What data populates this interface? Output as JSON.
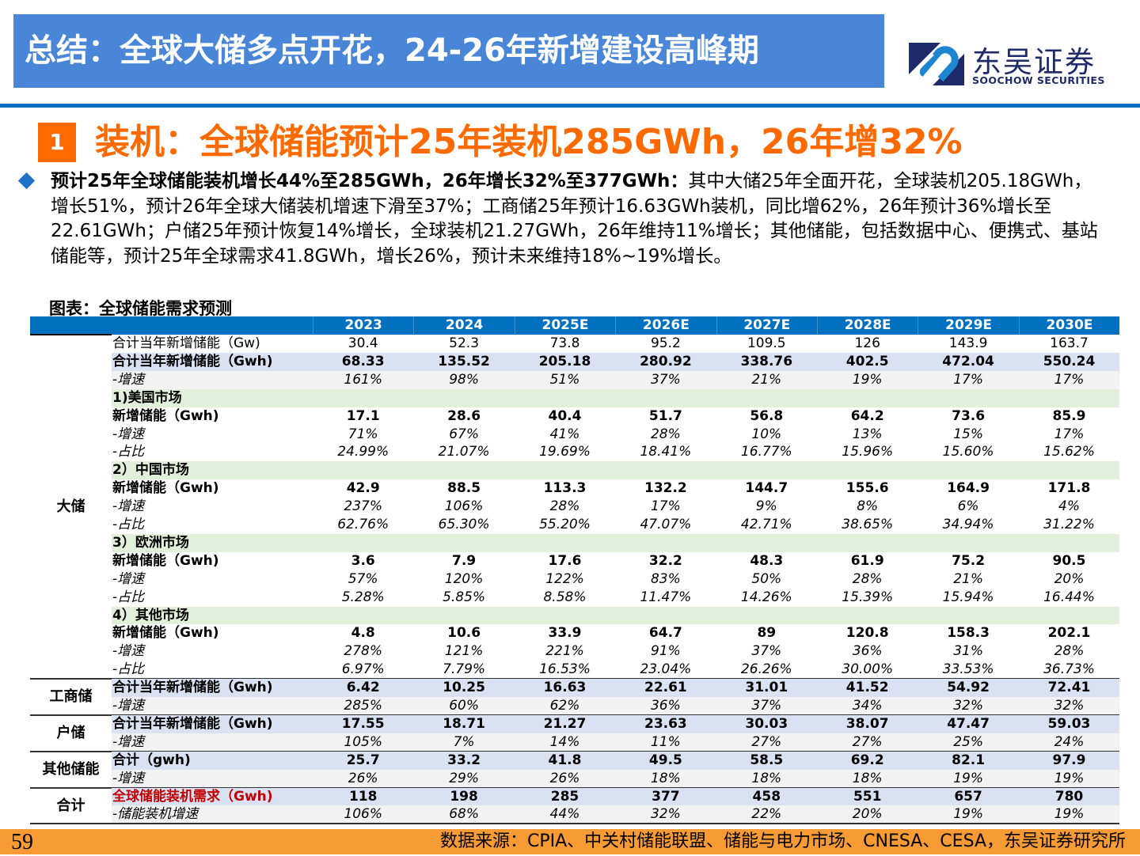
{
  "header": {
    "title": "总结：全球大储多点开花，24-26年新增建设高峰期",
    "logo_cn": "东吴证券",
    "logo_en": "SOOCHOW SECURITIES"
  },
  "section": {
    "number": "1",
    "title": "装机：全球储能预计25年装机285GWh，26年增32%"
  },
  "body": {
    "lead": "预计25年全球储能装机增长44%至285GWh，26年增长32%至377GWh：",
    "text": "其中大储25年全面开花，全球装机205.18GWh，增长51%，预计26年全球大储装机增速下滑至37%；工商储25年预计16.63GWh装机，同比增62%，26年预计36%增长至22.61GWh；户储25年预计恢复14%增长，全球装机21.27GWh，26年维持11%增长；其他储能，包括数据中心、便携式、基站储能等，预计25年全球需求41.8GWh，增长26%，预计未来维持18%~19%增长。"
  },
  "caption": "图表：全球储能需求预测",
  "colors": {
    "title_bg": "#4a86d8",
    "accent_orange": "#ff6a00",
    "table_header": "#0070c0",
    "highlight_red": "#c00000",
    "footer": "#f99b35"
  },
  "table": {
    "years": [
      "2023",
      "2024",
      "2025E",
      "2026E",
      "2027E",
      "2028E",
      "2029E",
      "2030E"
    ],
    "groups": [
      {
        "label": "大储",
        "rows": [
          {
            "label": "合计当年新增储能（Gw)",
            "kind": "normal",
            "values": [
              "30.4",
              "52.3",
              "73.8",
              "95.2",
              "109.5",
              "126",
              "143.9",
              "163.7"
            ]
          },
          {
            "label": "合计当年新增储能（Gwh)",
            "kind": "bold",
            "values": [
              "68.33",
              "135.52",
              "205.18",
              "280.92",
              "338.76",
              "402.5",
              "472.04",
              "550.24"
            ]
          },
          {
            "label": "-增速",
            "kind": "italic",
            "values": [
              "161%",
              "98%",
              "51%",
              "37%",
              "21%",
              "19%",
              "17%",
              "17%"
            ]
          },
          {
            "label": "1)美国市场",
            "kind": "section",
            "values": []
          },
          {
            "label": "新增储能（Gwh)",
            "kind": "bold plain",
            "values": [
              "17.1",
              "28.6",
              "40.4",
              "51.7",
              "56.8",
              "64.2",
              "73.6",
              "85.9"
            ]
          },
          {
            "label": "-增速",
            "kind": "italic plain",
            "values": [
              "71%",
              "67%",
              "41%",
              "28%",
              "10%",
              "13%",
              "15%",
              "17%"
            ]
          },
          {
            "label": "-占比",
            "kind": "italic plain",
            "values": [
              "24.99%",
              "21.07%",
              "19.69%",
              "18.41%",
              "16.77%",
              "15.96%",
              "15.60%",
              "15.62%"
            ]
          },
          {
            "label": "2）中国市场",
            "kind": "section",
            "values": []
          },
          {
            "label": "新增储能（Gwh)",
            "kind": "bold plain",
            "values": [
              "42.9",
              "88.5",
              "113.3",
              "132.2",
              "144.7",
              "155.6",
              "164.9",
              "171.8"
            ]
          },
          {
            "label": "-增速",
            "kind": "italic plain",
            "values": [
              "237%",
              "106%",
              "28%",
              "17%",
              "9%",
              "8%",
              "6%",
              "4%"
            ]
          },
          {
            "label": "-占比",
            "kind": "italic plain",
            "values": [
              "62.76%",
              "65.30%",
              "55.20%",
              "47.07%",
              "42.71%",
              "38.65%",
              "34.94%",
              "31.22%"
            ]
          },
          {
            "label": "3）欧洲市场",
            "kind": "section",
            "values": []
          },
          {
            "label": "新增储能（Gwh)",
            "kind": "bold plain",
            "values": [
              "3.6",
              "7.9",
              "17.6",
              "32.2",
              "48.3",
              "61.9",
              "75.2",
              "90.5"
            ]
          },
          {
            "label": "-增速",
            "kind": "italic plain",
            "values": [
              "57%",
              "120%",
              "122%",
              "83%",
              "50%",
              "28%",
              "21%",
              "20%"
            ]
          },
          {
            "label": "-占比",
            "kind": "italic plain",
            "values": [
              "5.28%",
              "5.85%",
              "8.58%",
              "11.47%",
              "14.26%",
              "15.39%",
              "15.94%",
              "16.44%"
            ]
          },
          {
            "label": "4）其他市场",
            "kind": "section",
            "values": []
          },
          {
            "label": "新增储能（Gwh)",
            "kind": "bold plain",
            "values": [
              "4.8",
              "10.6",
              "33.9",
              "64.7",
              "89",
              "120.8",
              "158.3",
              "202.1"
            ]
          },
          {
            "label": "-增速",
            "kind": "italic plain",
            "values": [
              "278%",
              "121%",
              "221%",
              "91%",
              "37%",
              "36%",
              "31%",
              "28%"
            ]
          },
          {
            "label": "-占比",
            "kind": "italic plain",
            "values": [
              "6.97%",
              "7.79%",
              "16.53%",
              "23.04%",
              "26.26%",
              "30.00%",
              "33.53%",
              "36.73%"
            ]
          }
        ]
      },
      {
        "label": "工商储",
        "rows": [
          {
            "label": "合计当年新增储能（Gwh)",
            "kind": "bold",
            "values": [
              "6.42",
              "10.25",
              "16.63",
              "22.61",
              "31.01",
              "41.52",
              "54.92",
              "72.41"
            ]
          },
          {
            "label": "-增速",
            "kind": "italic",
            "values": [
              "285%",
              "60%",
              "62%",
              "36%",
              "37%",
              "34%",
              "32%",
              "32%"
            ]
          }
        ]
      },
      {
        "label": "户储",
        "rows": [
          {
            "label": "合计当年新增储能（Gwh)",
            "kind": "bold",
            "values": [
              "17.55",
              "18.71",
              "21.27",
              "23.63",
              "30.03",
              "38.07",
              "47.47",
              "59.03"
            ]
          },
          {
            "label": "-增速",
            "kind": "italic",
            "values": [
              "105%",
              "7%",
              "14%",
              "11%",
              "27%",
              "27%",
              "25%",
              "24%"
            ]
          }
        ]
      },
      {
        "label": "其他储能",
        "rows": [
          {
            "label": "合计（gwh)",
            "kind": "bold",
            "values": [
              "25.7",
              "33.2",
              "41.8",
              "49.5",
              "58.5",
              "69.2",
              "82.1",
              "97.9"
            ]
          },
          {
            "label": "-增速",
            "kind": "italic",
            "values": [
              "26%",
              "29%",
              "26%",
              "18%",
              "18%",
              "18%",
              "19%",
              "19%"
            ]
          }
        ]
      },
      {
        "label": "合计",
        "rows": [
          {
            "label": "全球储能装机需求（Gwh)",
            "kind": "bold red",
            "values": [
              "118",
              "198",
              "285",
              "377",
              "458",
              "551",
              "657",
              "780"
            ]
          },
          {
            "label": "-储能装机增速",
            "kind": "italic",
            "values": [
              "106%",
              "68%",
              "44%",
              "32%",
              "22%",
              "20%",
              "19%",
              "19%"
            ]
          }
        ]
      }
    ]
  },
  "footer": {
    "page": "59",
    "source": "数据来源：CPIA、中关村储能联盟、储能与电力市场、CNESA、CESA，东吴证券研究所"
  }
}
